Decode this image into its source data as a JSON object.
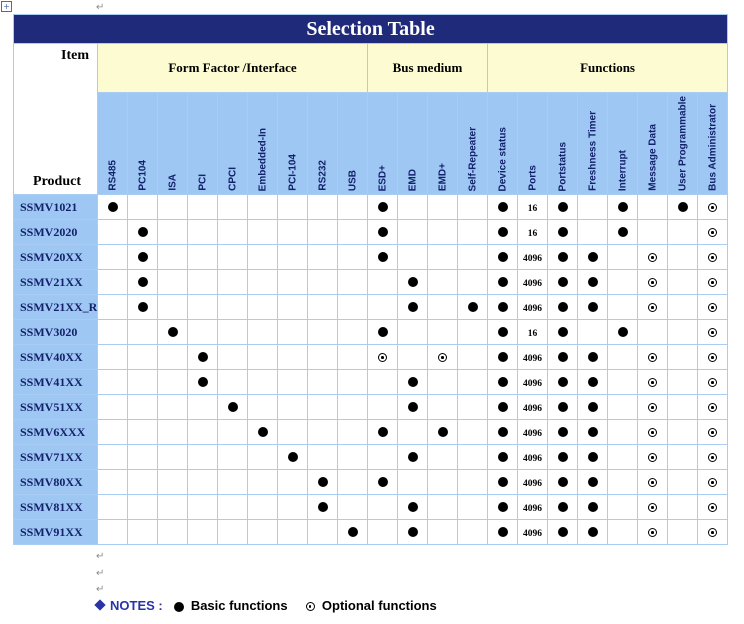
{
  "title": "Selection Table",
  "corner": {
    "item": "Item",
    "product": "Product"
  },
  "groups": [
    {
      "label": "Form Factor /Interface",
      "span": 9
    },
    {
      "label": "Bus medium",
      "span": 4
    },
    {
      "label": "Functions",
      "span": 8
    }
  ],
  "columns": [
    "RS485",
    "PC104",
    "ISA",
    "PCI",
    "CPCI",
    "Embedded-In",
    "PCI-104",
    "RS232",
    "USB",
    "ESD+",
    "EMD",
    "EMD+",
    "Self-Repeater",
    "Device status",
    "Ports",
    "Portstatus",
    "Freshness Timer",
    "Interrupt",
    "Message Data",
    "User Programmable",
    "Bus Administrator"
  ],
  "legend_codes": {
    "F": "Basic functions",
    "O": "Optional functions"
  },
  "rows": [
    {
      "product": "SSMV1021",
      "cells": [
        "F",
        "",
        "",
        "",
        "",
        "",
        "",
        "",
        "",
        "F",
        "",
        "",
        "",
        "F",
        "16",
        "F",
        "",
        "F",
        "",
        "F",
        "O"
      ]
    },
    {
      "product": "SSMV2020",
      "cells": [
        "",
        "F",
        "",
        "",
        "",
        "",
        "",
        "",
        "",
        "F",
        "",
        "",
        "",
        "F",
        "16",
        "F",
        "",
        "F",
        "",
        "",
        "O"
      ]
    },
    {
      "product": "SSMV20XX",
      "cells": [
        "",
        "F",
        "",
        "",
        "",
        "",
        "",
        "",
        "",
        "F",
        "",
        "",
        "",
        "F",
        "4096",
        "F",
        "F",
        "",
        "O",
        "",
        "O"
      ]
    },
    {
      "product": "SSMV21XX",
      "cells": [
        "",
        "F",
        "",
        "",
        "",
        "",
        "",
        "",
        "",
        "",
        "F",
        "",
        "",
        "F",
        "4096",
        "F",
        "F",
        "",
        "O",
        "",
        "O"
      ]
    },
    {
      "product": "SSMV21XX_R",
      "cells": [
        "",
        "F",
        "",
        "",
        "",
        "",
        "",
        "",
        "",
        "",
        "F",
        "",
        "F",
        "F",
        "4096",
        "F",
        "F",
        "",
        "O",
        "",
        "O"
      ]
    },
    {
      "product": "SSMV3020",
      "cells": [
        "",
        "",
        "F",
        "",
        "",
        "",
        "",
        "",
        "",
        "F",
        "",
        "",
        "",
        "F",
        "16",
        "F",
        "",
        "F",
        "",
        "",
        "O"
      ]
    },
    {
      "product": "SSMV40XX",
      "cells": [
        "",
        "",
        "",
        "F",
        "",
        "",
        "",
        "",
        "",
        "O",
        "",
        "O",
        "",
        "F",
        "4096",
        "F",
        "F",
        "",
        "O",
        "",
        "O"
      ]
    },
    {
      "product": "SSMV41XX",
      "cells": [
        "",
        "",
        "",
        "F",
        "",
        "",
        "",
        "",
        "",
        "",
        "F",
        "",
        "",
        "F",
        "4096",
        "F",
        "F",
        "",
        "O",
        "",
        "O"
      ]
    },
    {
      "product": "SSMV51XX",
      "cells": [
        "",
        "",
        "",
        "",
        "F",
        "",
        "",
        "",
        "",
        "",
        "F",
        "",
        "",
        "F",
        "4096",
        "F",
        "F",
        "",
        "O",
        "",
        "O"
      ]
    },
    {
      "product": "SSMV6XXX",
      "cells": [
        "",
        "",
        "",
        "",
        "",
        "F",
        "",
        "",
        "",
        "F",
        "",
        "F",
        "",
        "F",
        "4096",
        "F",
        "F",
        "",
        "O",
        "",
        "O"
      ]
    },
    {
      "product": "SSMV71XX",
      "cells": [
        "",
        "",
        "",
        "",
        "",
        "",
        "F",
        "",
        "",
        "",
        "F",
        "",
        "",
        "F",
        "4096",
        "F",
        "F",
        "",
        "O",
        "",
        "O"
      ]
    },
    {
      "product": "SSMV80XX",
      "cells": [
        "",
        "",
        "",
        "",
        "",
        "",
        "",
        "F",
        "",
        "F",
        "",
        "",
        "",
        "F",
        "4096",
        "F",
        "F",
        "",
        "O",
        "",
        "O"
      ]
    },
    {
      "product": "SSMV81XX",
      "cells": [
        "",
        "",
        "",
        "",
        "",
        "",
        "",
        "F",
        "",
        "",
        "F",
        "",
        "",
        "F",
        "4096",
        "F",
        "F",
        "",
        "O",
        "",
        "O"
      ]
    },
    {
      "product": "SSMV91XX",
      "cells": [
        "",
        "",
        "",
        "",
        "",
        "",
        "",
        "",
        "F",
        "",
        "F",
        "",
        "",
        "F",
        "4096",
        "F",
        "F",
        "",
        "O",
        "",
        "O"
      ]
    }
  ],
  "notes": {
    "label": "NOTES :",
    "basic": "Basic functions",
    "optional": "Optional functions"
  }
}
